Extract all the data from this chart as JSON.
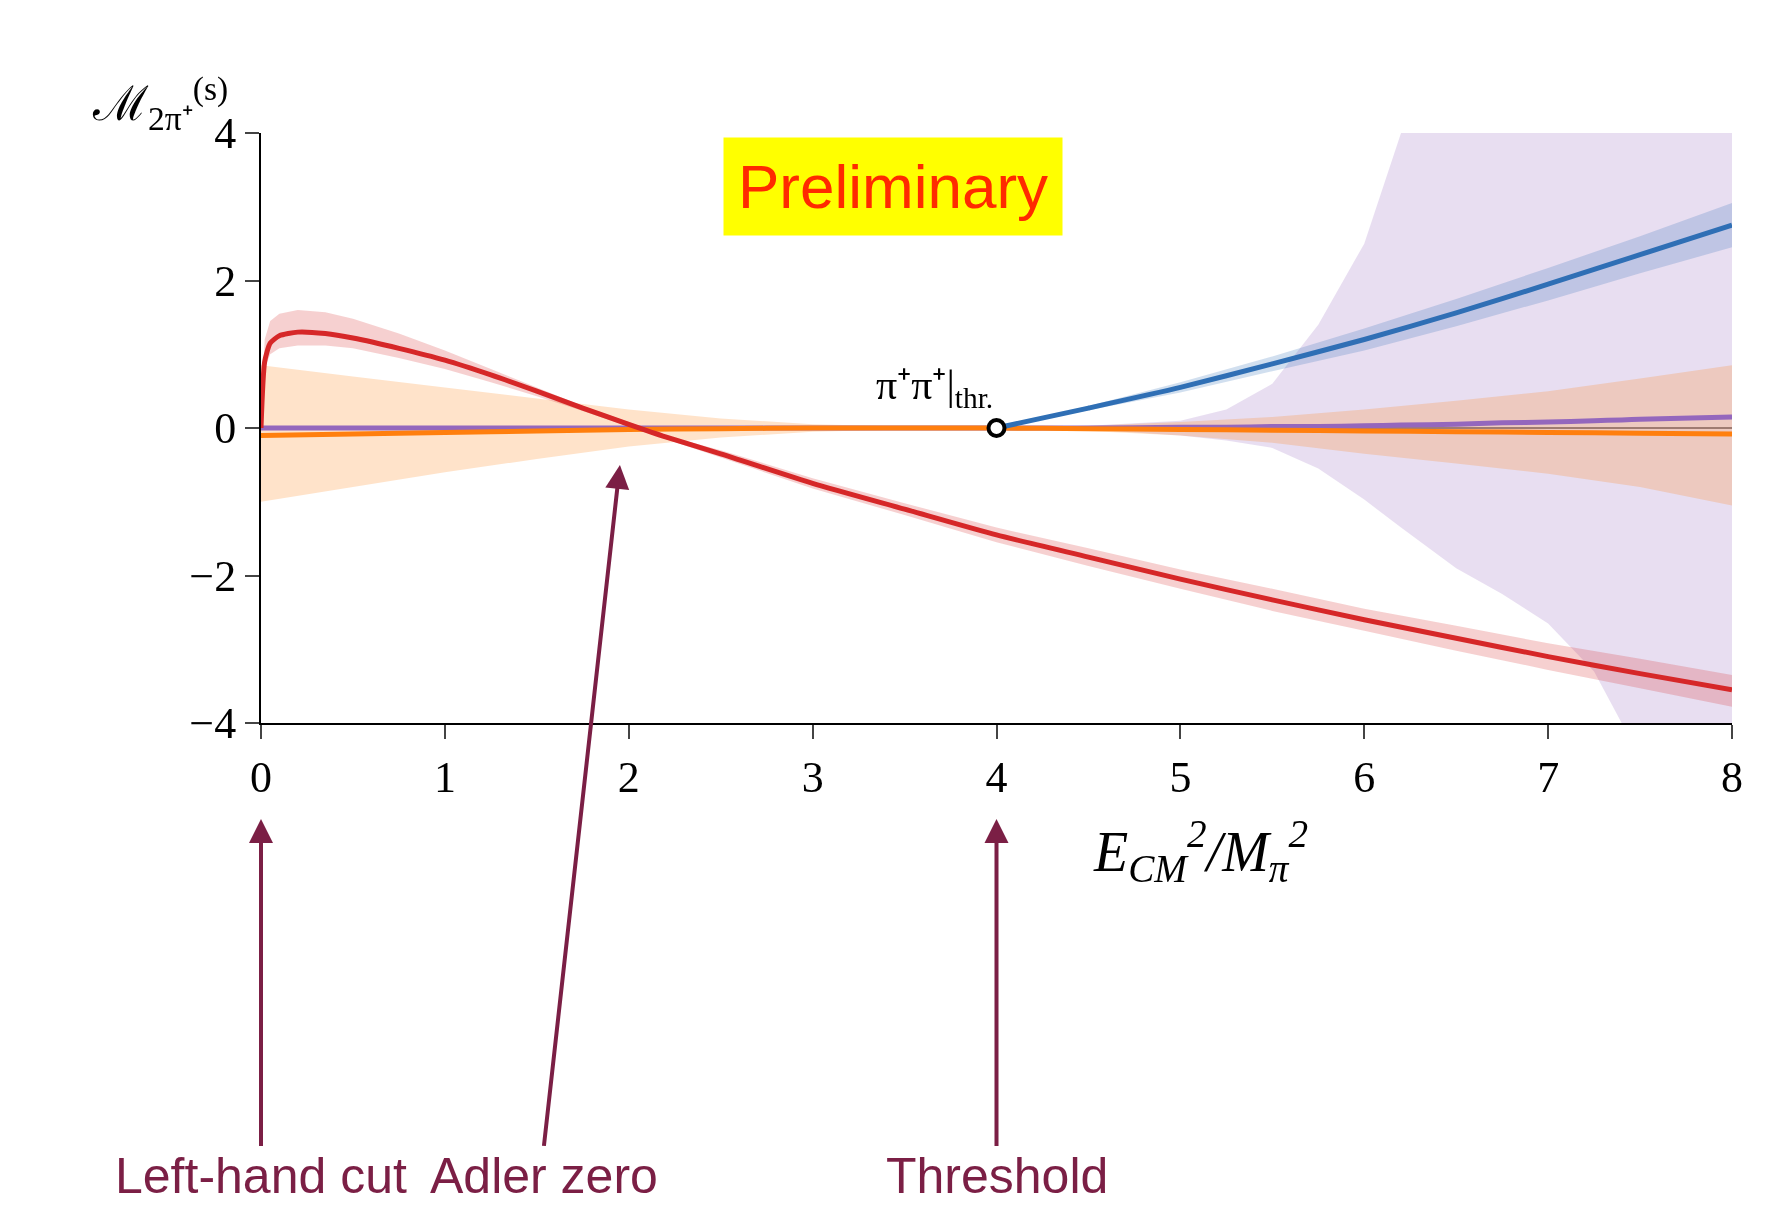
{
  "chart_data": {
    "type": "line",
    "title": "Preliminary",
    "xlabel": "E$_{CM}$$^{2}$/M$_{π}$$^{2}$",
    "ylabel": "ℳ$_{2π⁺}$$^{(s)}$",
    "xlim": [
      0,
      8
    ],
    "ylim": [
      -4,
      4
    ],
    "xticks": [
      0,
      1,
      2,
      3,
      4,
      5,
      6,
      7,
      8
    ],
    "yticks": [
      -4,
      -2,
      0,
      2,
      4
    ],
    "grid": false,
    "ref_lines": [
      {
        "axis": "y",
        "value": 0,
        "color": "#555555"
      }
    ],
    "annotations": [
      {
        "text": "π⁺π⁺|$_{thr.}$",
        "x": 4,
        "y": 0
      },
      "Adler zero",
      "Left-hand cut",
      "Threshold"
    ],
    "series": [
      {
        "color": "#9467bd",
        "x": [
          0,
          1,
          2,
          3,
          4,
          4.5,
          5,
          5.25,
          5.5,
          5.75,
          6,
          6.2,
          6.5,
          6.75,
          7,
          7.25,
          7.4,
          7.5,
          8
        ],
        "values": [
          0,
          0,
          0,
          0,
          0,
          0,
          0.01,
          0.01,
          0.02,
          0.02,
          0.03,
          0.04,
          0.05,
          0.07,
          0.08,
          0.1,
          0.11,
          0.12,
          0.15
        ],
        "upper": [
          0,
          0,
          0,
          0,
          0,
          0.03,
          0.1,
          0.25,
          0.6,
          1.4,
          2.5,
          4,
          4,
          4,
          4,
          4,
          4,
          4,
          4
        ],
        "lower": [
          0,
          0,
          0,
          0,
          0,
          -0.02,
          -0.1,
          -0.17,
          -0.27,
          -0.55,
          -0.97,
          -1.35,
          -1.9,
          -2.25,
          -2.65,
          -3.3,
          -4,
          -4,
          -4
        ]
      },
      {
        "color": "#ff7f0e",
        "x": [
          0,
          0.5,
          1,
          1.5,
          2,
          2.5,
          3,
          3.5,
          4,
          4.5,
          5,
          5.5,
          6,
          6.5,
          7,
          7.5,
          8
        ],
        "values": [
          -0.1,
          -0.08,
          -0.06,
          -0.04,
          -0.02,
          -0.01,
          0,
          0,
          0,
          -0.01,
          -0.02,
          -0.03,
          -0.04,
          -0.05,
          -0.06,
          -0.07,
          -0.08
        ],
        "upper": [
          0.85,
          0.7,
          0.55,
          0.4,
          0.25,
          0.13,
          0.05,
          0.02,
          0.01,
          0.03,
          0.08,
          0.15,
          0.25,
          0.37,
          0.5,
          0.67,
          0.85
        ],
        "lower": [
          -1.0,
          -0.8,
          -0.6,
          -0.42,
          -0.25,
          -0.13,
          -0.05,
          -0.02,
          -0.01,
          -0.04,
          -0.1,
          -0.2,
          -0.35,
          -0.48,
          -0.62,
          -0.8,
          -1.05
        ]
      },
      {
        "color": "#d62728",
        "x": [
          0,
          0.02,
          0.05,
          0.1,
          0.2,
          0.35,
          0.5,
          0.75,
          1,
          1.25,
          1.5,
          1.75,
          2,
          2.2,
          2.5,
          3,
          3.5,
          4,
          4.5,
          5,
          5.5,
          6,
          6.5,
          7,
          7.5,
          8
        ],
        "values": [
          0,
          0.9,
          1.15,
          1.25,
          1.3,
          1.28,
          1.22,
          1.08,
          0.92,
          0.72,
          0.5,
          0.27,
          0.05,
          -0.12,
          -0.35,
          -0.75,
          -1.1,
          -1.45,
          -1.75,
          -2.05,
          -2.33,
          -2.6,
          -2.85,
          -3.1,
          -3.33,
          -3.55
        ],
        "upper": [
          0,
          1.2,
          1.45,
          1.55,
          1.6,
          1.57,
          1.48,
          1.28,
          1.05,
          0.8,
          0.55,
          0.3,
          0.08,
          -0.1,
          -0.3,
          -0.68,
          -1.02,
          -1.35,
          -1.63,
          -1.92,
          -2.18,
          -2.45,
          -2.68,
          -2.92,
          -3.13,
          -3.35
        ],
        "lower": [
          0,
          0.8,
          1.0,
          1.08,
          1.12,
          1.12,
          1.08,
          0.95,
          0.8,
          0.62,
          0.43,
          0.23,
          0.02,
          -0.15,
          -0.4,
          -0.82,
          -1.18,
          -1.55,
          -1.87,
          -2.18,
          -2.48,
          -2.75,
          -3.02,
          -3.28,
          -3.53,
          -3.78
        ]
      },
      {
        "color": "#2f6fb5",
        "x": [
          4,
          4.5,
          5,
          5.5,
          6,
          6.5,
          7,
          7.5,
          8
        ],
        "values": [
          0,
          0.27,
          0.55,
          0.87,
          1.2,
          1.56,
          1.95,
          2.35,
          2.75
        ],
        "upper": [
          0,
          0.3,
          0.62,
          0.97,
          1.35,
          1.75,
          2.17,
          2.6,
          3.05
        ],
        "lower": [
          0,
          0.24,
          0.48,
          0.77,
          1.05,
          1.38,
          1.73,
          2.1,
          2.45
        ]
      },
      {
        "type": "scatter",
        "color": "#000000",
        "x": [
          4
        ],
        "values": [
          0
        ]
      }
    ]
  }
}
